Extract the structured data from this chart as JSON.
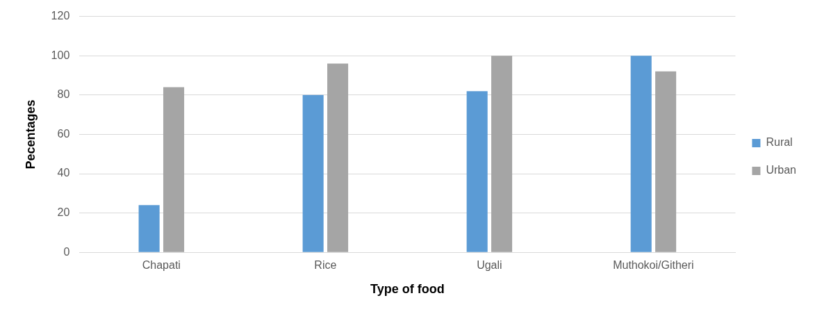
{
  "chart_data": {
    "type": "bar",
    "xlabel": "Type of food",
    "ylabel": "Pecentages",
    "categories": [
      "Chapati",
      "Rice",
      "Ugali",
      "Muthokoi/Githeri"
    ],
    "series": [
      {
        "name": "Rural",
        "color": "#5b9bd5",
        "values": [
          24,
          80,
          82,
          100
        ]
      },
      {
        "name": "Urban",
        "color": "#a5a5a5",
        "values": [
          84,
          96,
          100,
          92
        ]
      }
    ],
    "ylim": [
      0,
      120
    ],
    "yticks": [
      0,
      20,
      40,
      60,
      80,
      100,
      120
    ],
    "grid": "y",
    "legend": "right"
  }
}
